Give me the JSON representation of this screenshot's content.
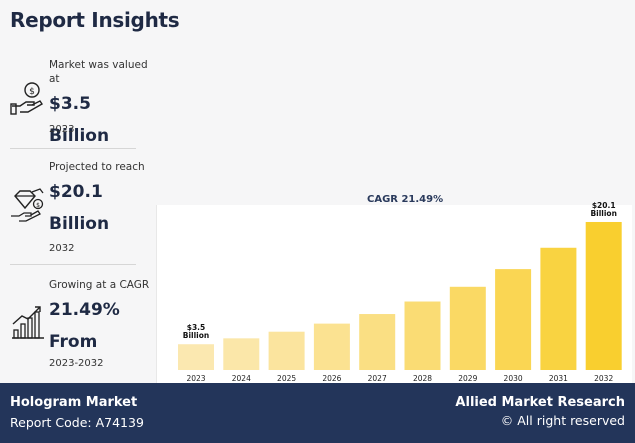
{
  "header": {
    "title": "Report Insights"
  },
  "insights": [
    {
      "label": "Market was valued at",
      "value": "$3.5 Billion",
      "sub": "2023",
      "icon": "money-hand-icon"
    },
    {
      "label": "Projected to reach",
      "value": "$20.1 Billion",
      "sub": "2032",
      "icon": "diamond-growth-icon"
    },
    {
      "label": "Growing at a CAGR",
      "value": "21.49% From",
      "sub": "2023-2032",
      "icon": "bar-growth-icon"
    }
  ],
  "chart_data": {
    "type": "bar",
    "categories": [
      "2023",
      "2024",
      "2025",
      "2026",
      "2027",
      "2028",
      "2029",
      "2030",
      "2031",
      "2032"
    ],
    "values": [
      3.5,
      4.3,
      5.2,
      6.3,
      7.6,
      9.3,
      11.3,
      13.7,
      16.6,
      20.1
    ],
    "annotations": [
      {
        "category": "2023",
        "text": "$3.5 Billion"
      },
      {
        "category": "2032",
        "text": "$20.1 Billion"
      }
    ],
    "cagr_label": "CAGR 21.49%",
    "ylim": [
      0,
      22
    ],
    "colors": {
      "start": "#fbe8b0",
      "end": "#f9cf2f"
    }
  },
  "footer": {
    "report_name": "Hologram Market",
    "report_code": "Report Code: A74139",
    "brand": "Allied Market Research",
    "rights": "© All right reserved"
  }
}
